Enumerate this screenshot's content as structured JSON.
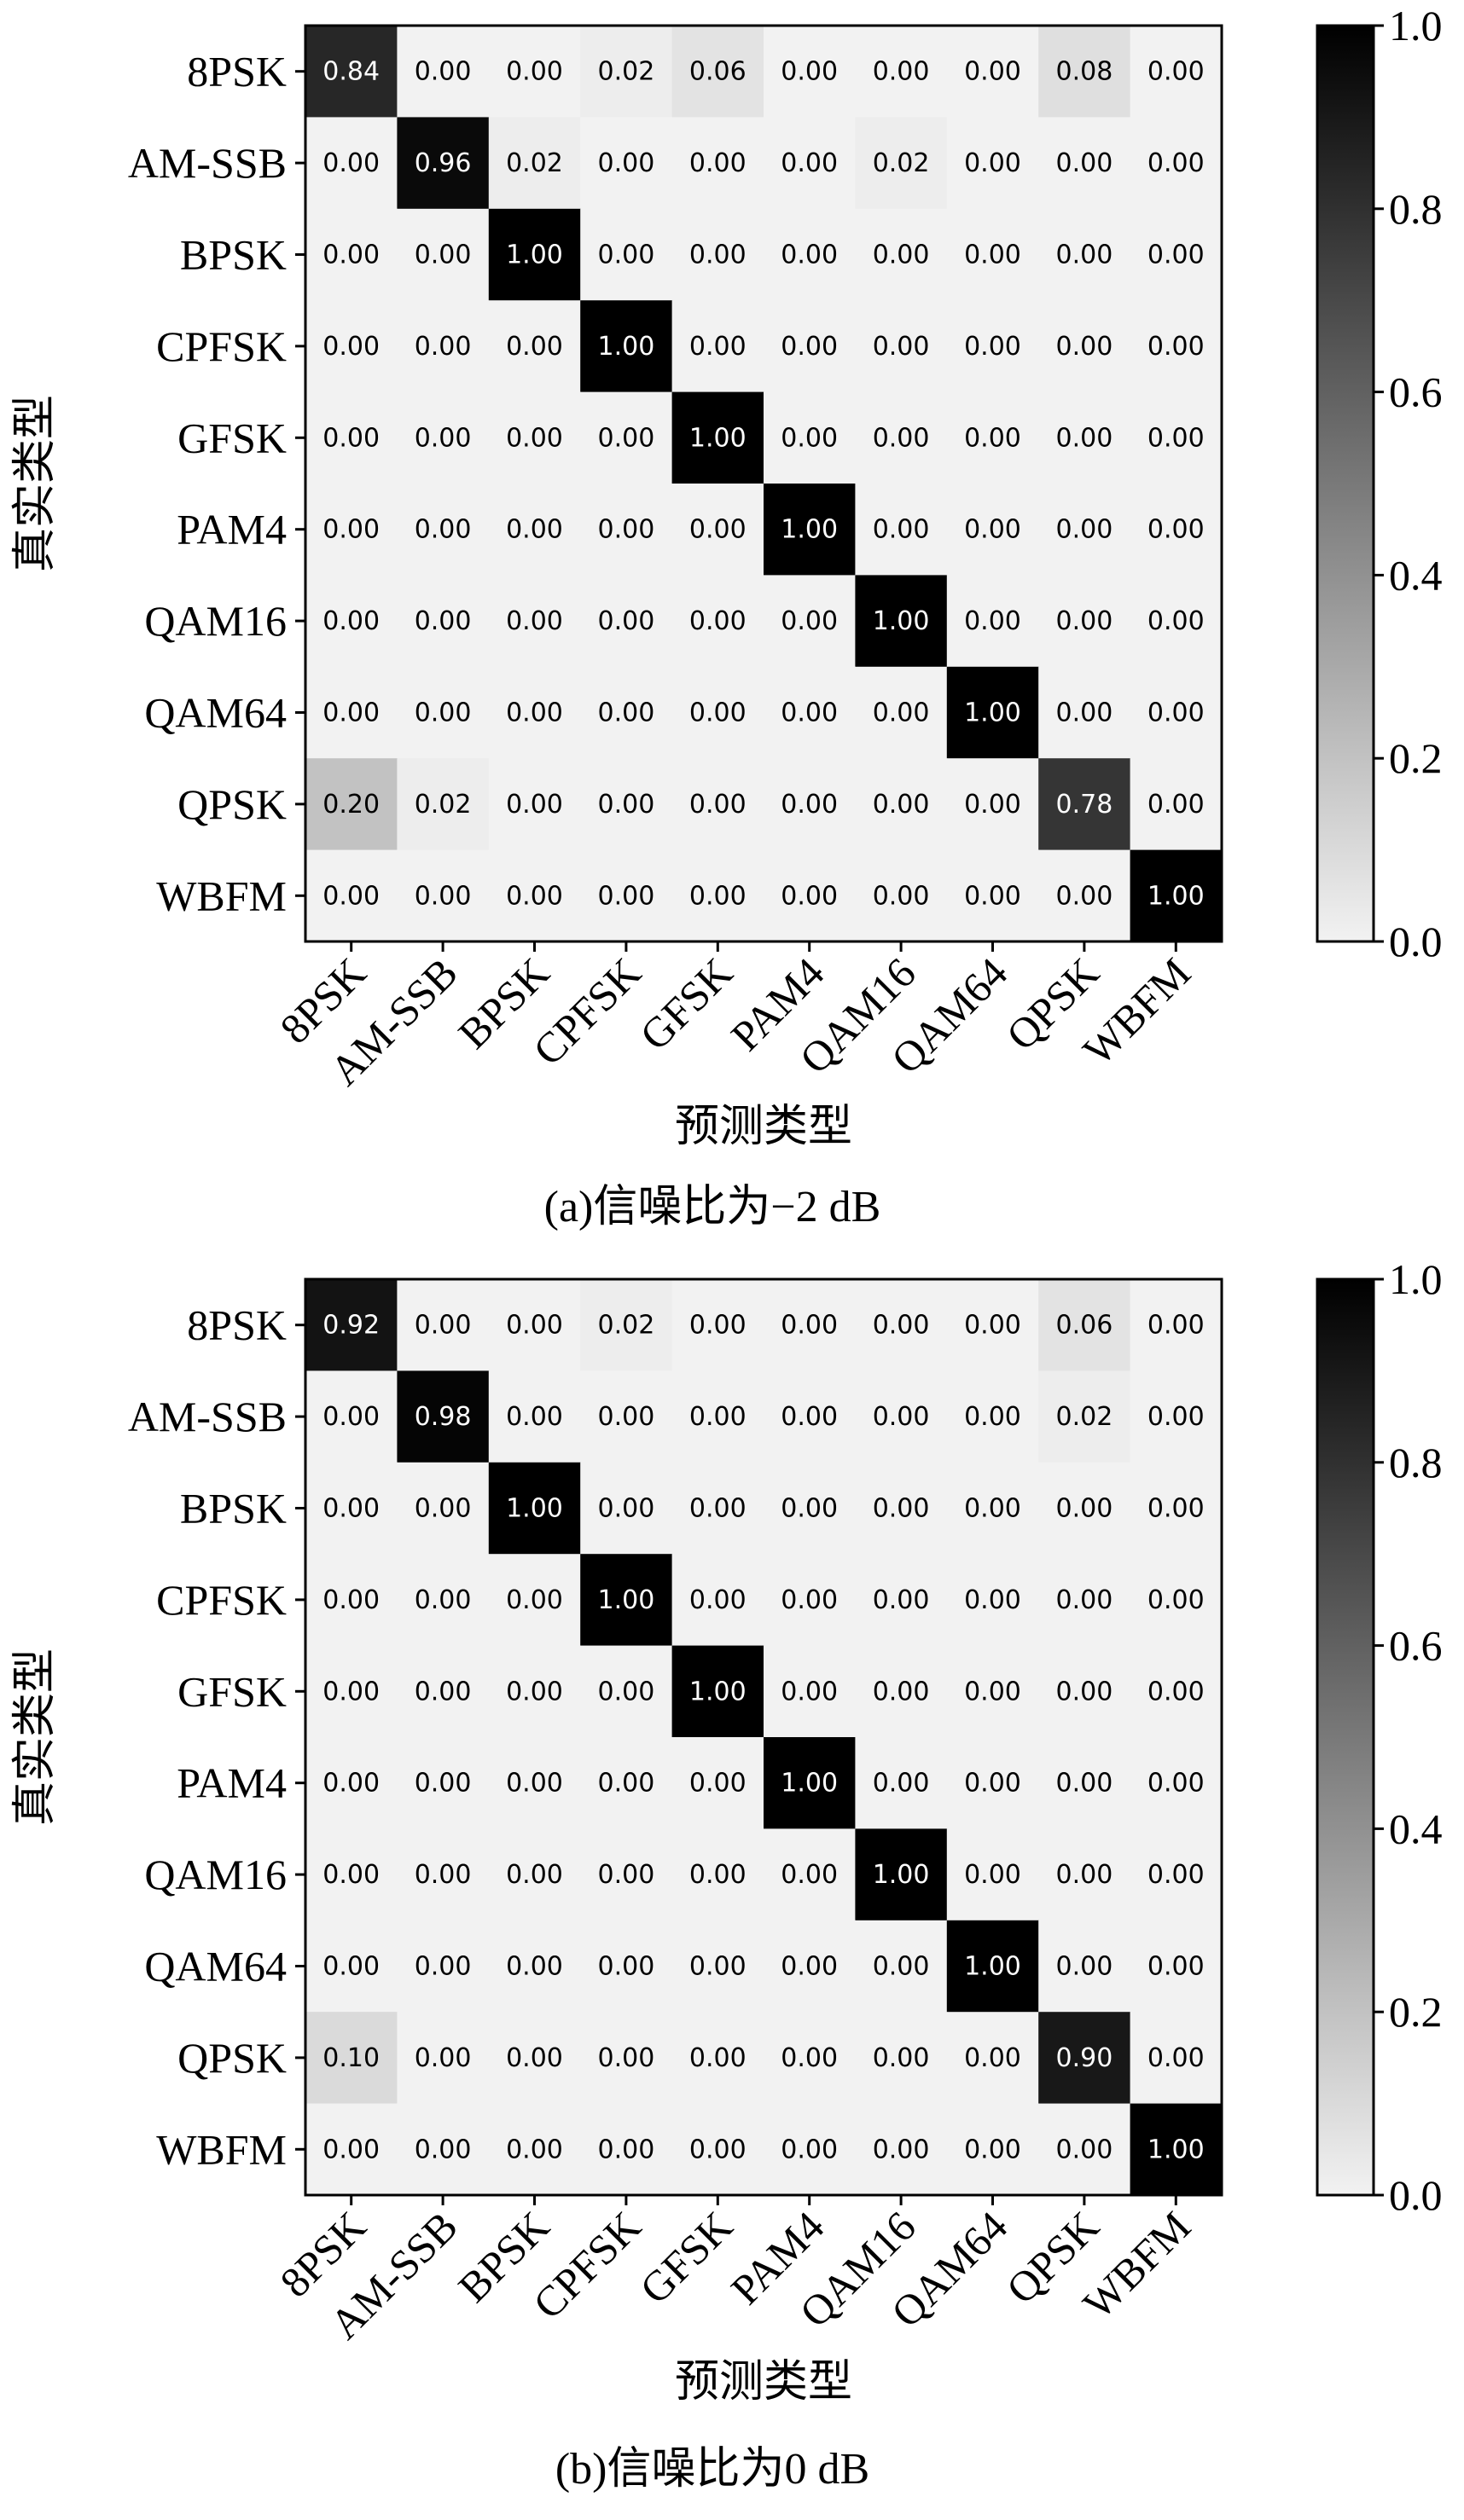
{
  "chart_data": [
    {
      "type": "heatmap",
      "caption": "(a)信噪比为−2 dB",
      "xlabel": "预测类型",
      "ylabel": "真实类型",
      "x_categories": [
        "8PSK",
        "AM-SSB",
        "BPSK",
        "CPFSK",
        "GFSK",
        "PAM4",
        "QAM16",
        "QAM64",
        "QPSK",
        "WBFM"
      ],
      "y_categories": [
        "8PSK",
        "AM-SSB",
        "BPSK",
        "CPFSK",
        "GFSK",
        "PAM4",
        "QAM16",
        "QAM64",
        "QPSK",
        "WBFM"
      ],
      "values": [
        [
          0.84,
          0.0,
          0.0,
          0.02,
          0.06,
          0.0,
          0.0,
          0.0,
          0.08,
          0.0
        ],
        [
          0.0,
          0.96,
          0.02,
          0.0,
          0.0,
          0.0,
          0.02,
          0.0,
          0.0,
          0.0
        ],
        [
          0.0,
          0.0,
          1.0,
          0.0,
          0.0,
          0.0,
          0.0,
          0.0,
          0.0,
          0.0
        ],
        [
          0.0,
          0.0,
          0.0,
          1.0,
          0.0,
          0.0,
          0.0,
          0.0,
          0.0,
          0.0
        ],
        [
          0.0,
          0.0,
          0.0,
          0.0,
          1.0,
          0.0,
          0.0,
          0.0,
          0.0,
          0.0
        ],
        [
          0.0,
          0.0,
          0.0,
          0.0,
          0.0,
          1.0,
          0.0,
          0.0,
          0.0,
          0.0
        ],
        [
          0.0,
          0.0,
          0.0,
          0.0,
          0.0,
          0.0,
          1.0,
          0.0,
          0.0,
          0.0
        ],
        [
          0.0,
          0.0,
          0.0,
          0.0,
          0.0,
          0.0,
          0.0,
          1.0,
          0.0,
          0.0
        ],
        [
          0.2,
          0.02,
          0.0,
          0.0,
          0.0,
          0.0,
          0.0,
          0.0,
          0.78,
          0.0
        ],
        [
          0.0,
          0.0,
          0.0,
          0.0,
          0.0,
          0.0,
          0.0,
          0.0,
          0.0,
          1.0
        ]
      ],
      "colorbar": {
        "min": 0.0,
        "max": 1.0,
        "ticks": [
          "0.0",
          "0.2",
          "0.4",
          "0.6",
          "0.8",
          "1.0"
        ],
        "colormap": "greys"
      }
    },
    {
      "type": "heatmap",
      "caption": "(b)信噪比为0 dB",
      "xlabel": "预测类型",
      "ylabel": "真实类型",
      "x_categories": [
        "8PSK",
        "AM-SSB",
        "BPSK",
        "CPFSK",
        "GFSK",
        "PAM4",
        "QAM16",
        "QAM64",
        "QPSK",
        "WBFM"
      ],
      "y_categories": [
        "8PSK",
        "AM-SSB",
        "BPSK",
        "CPFSK",
        "GFSK",
        "PAM4",
        "QAM16",
        "QAM64",
        "QPSK",
        "WBFM"
      ],
      "values": [
        [
          0.92,
          0.0,
          0.0,
          0.02,
          0.0,
          0.0,
          0.0,
          0.0,
          0.06,
          0.0
        ],
        [
          0.0,
          0.98,
          0.0,
          0.0,
          0.0,
          0.0,
          0.0,
          0.0,
          0.02,
          0.0
        ],
        [
          0.0,
          0.0,
          1.0,
          0.0,
          0.0,
          0.0,
          0.0,
          0.0,
          0.0,
          0.0
        ],
        [
          0.0,
          0.0,
          0.0,
          1.0,
          0.0,
          0.0,
          0.0,
          0.0,
          0.0,
          0.0
        ],
        [
          0.0,
          0.0,
          0.0,
          0.0,
          1.0,
          0.0,
          0.0,
          0.0,
          0.0,
          0.0
        ],
        [
          0.0,
          0.0,
          0.0,
          0.0,
          0.0,
          1.0,
          0.0,
          0.0,
          0.0,
          0.0
        ],
        [
          0.0,
          0.0,
          0.0,
          0.0,
          0.0,
          0.0,
          1.0,
          0.0,
          0.0,
          0.0
        ],
        [
          0.0,
          0.0,
          0.0,
          0.0,
          0.0,
          0.0,
          0.0,
          1.0,
          0.0,
          0.0
        ],
        [
          0.1,
          0.0,
          0.0,
          0.0,
          0.0,
          0.0,
          0.0,
          0.0,
          0.9,
          0.0
        ],
        [
          0.0,
          0.0,
          0.0,
          0.0,
          0.0,
          0.0,
          0.0,
          0.0,
          0.0,
          1.0
        ]
      ],
      "colorbar": {
        "min": 0.0,
        "max": 1.0,
        "ticks": [
          "0.0",
          "0.2",
          "0.4",
          "0.6",
          "0.8",
          "1.0"
        ],
        "colormap": "greys"
      }
    }
  ]
}
